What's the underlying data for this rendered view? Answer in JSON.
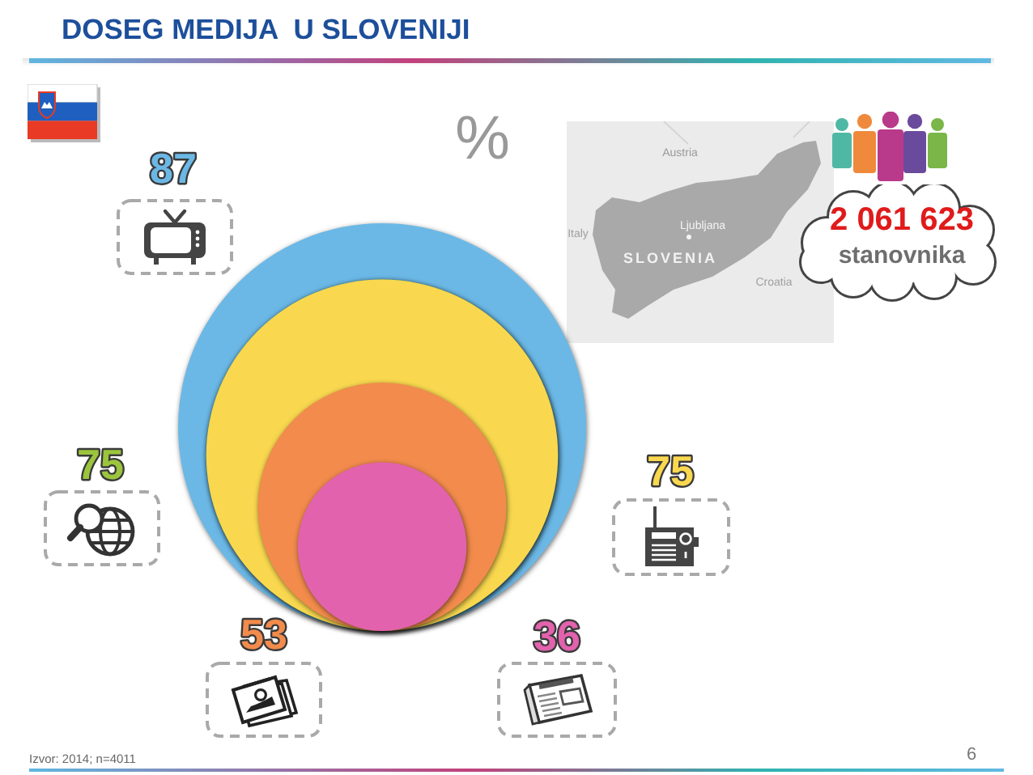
{
  "chart_data": {
    "type": "other",
    "title": "DOSEG MEDIJA  U SLOVENIJI",
    "categories": [
      null,
      null,
      null,
      null,
      null
    ],
    "values": [
      87,
      75,
      75,
      53,
      36
    ],
    "colors": [
      "#6bb8e6",
      "#9bc53d",
      "#f9d84f",
      "#f28b4c",
      "#e262ad"
    ],
    "data_labels": true,
    "annotations": [
      "%",
      "2 061 623",
      "stanovnika",
      "Austria",
      "Italy",
      "Ljubljana",
      "SLOVENIA",
      "Croatia",
      "Izvor: 2014; n=4011",
      "6"
    ]
  }
}
